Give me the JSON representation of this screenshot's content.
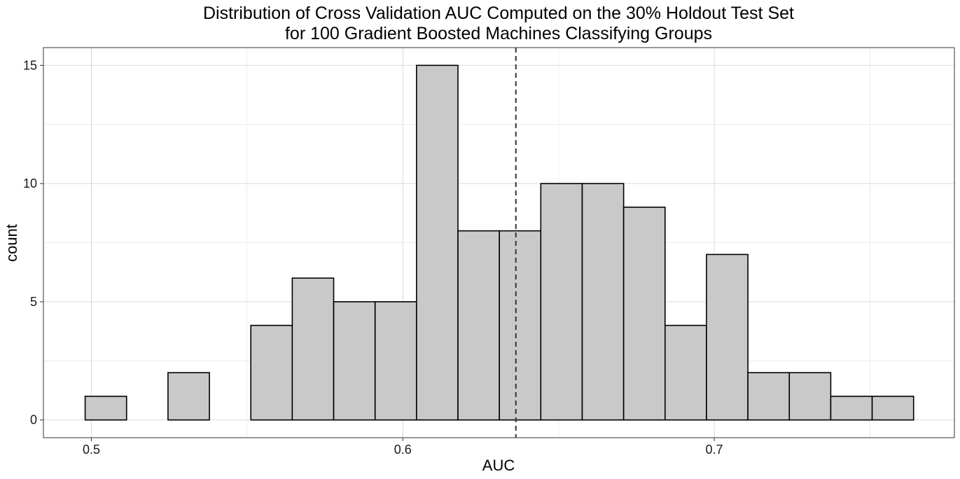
{
  "chart_data": {
    "type": "bar",
    "title_lines": [
      "Distribution of Cross Validation AUC Computed on the 30% Holdout Test Set",
      "for 100 Gradient Boosted Machines Classifying Groups"
    ],
    "xlabel": "AUC",
    "ylabel": "count",
    "x_ticks": [
      {
        "value": 0.5,
        "label": "0.5"
      },
      {
        "value": 0.6,
        "label": "0.6"
      },
      {
        "value": 0.7,
        "label": "0.7"
      }
    ],
    "y_ticks": [
      {
        "value": 0,
        "label": "0"
      },
      {
        "value": 5,
        "label": "5"
      },
      {
        "value": 10,
        "label": "10"
      },
      {
        "value": 15,
        "label": "15"
      }
    ],
    "xlim": [
      0.4846,
      0.7771
    ],
    "ylim": [
      -0.75,
      15.75
    ],
    "bin_edges": [
      0.498,
      0.5113,
      0.5246,
      0.5379,
      0.5512,
      0.5645,
      0.5778,
      0.5911,
      0.6044,
      0.6177,
      0.631,
      0.6443,
      0.6576,
      0.6709,
      0.6842,
      0.6975,
      0.7108,
      0.7241,
      0.7374,
      0.7507,
      0.764
    ],
    "values": [
      1,
      0,
      2,
      0,
      4,
      6,
      5,
      5,
      15,
      8,
      8,
      10,
      10,
      9,
      4,
      7,
      2,
      2,
      1,
      1
    ],
    "mean_line_x": 0.6363,
    "grid": true,
    "colors": {
      "bar_fill": "#c9c9c9",
      "bar_stroke": "#000000",
      "grid_major": "#d9d9d9",
      "grid_minor": "#ececec",
      "panel_border": "#333333"
    }
  }
}
